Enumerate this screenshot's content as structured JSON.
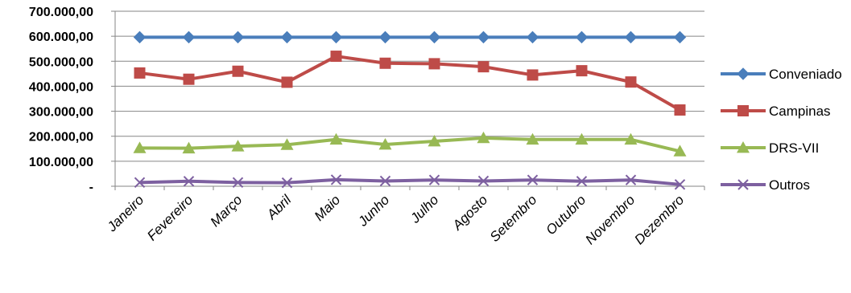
{
  "chart_data": {
    "type": "line",
    "categories": [
      "Janeiro",
      "Fevereiro",
      "Março",
      "Abril",
      "Maio",
      "Junho",
      "Julho",
      "Agosto",
      "Setembro",
      "Outubro",
      "Novembro",
      "Dezembro"
    ],
    "y_tick_labels": [
      "-",
      "100.000,00",
      "200.000,00",
      "300.000,00",
      "400.000,00",
      "500.000,00",
      "600.000,00",
      "700.000,00"
    ],
    "ylim": [
      0,
      700000
    ],
    "grid": true,
    "legend_position": "right",
    "series": [
      {
        "name": "Conveniado",
        "color": "#4a7ebb",
        "marker": "diamond",
        "values": [
          596000,
          596000,
          596000,
          596000,
          596000,
          596000,
          596000,
          596000,
          596000,
          596000,
          596000,
          596000
        ]
      },
      {
        "name": "Campinas",
        "color": "#be4b48",
        "marker": "square",
        "values": [
          453000,
          428000,
          460000,
          416000,
          520000,
          492000,
          490000,
          478000,
          445000,
          462000,
          417000,
          305000
        ]
      },
      {
        "name": "DRS-VII",
        "color": "#98b954",
        "marker": "triangle",
        "values": [
          153000,
          152000,
          160000,
          166000,
          187000,
          167000,
          180000,
          193000,
          187000,
          187000,
          187000,
          140000
        ]
      },
      {
        "name": "Outros",
        "color": "#7d60a0",
        "marker": "x",
        "values": [
          15000,
          20000,
          15000,
          14000,
          26000,
          21000,
          25000,
          21000,
          25000,
          20000,
          25000,
          7000
        ]
      }
    ]
  }
}
